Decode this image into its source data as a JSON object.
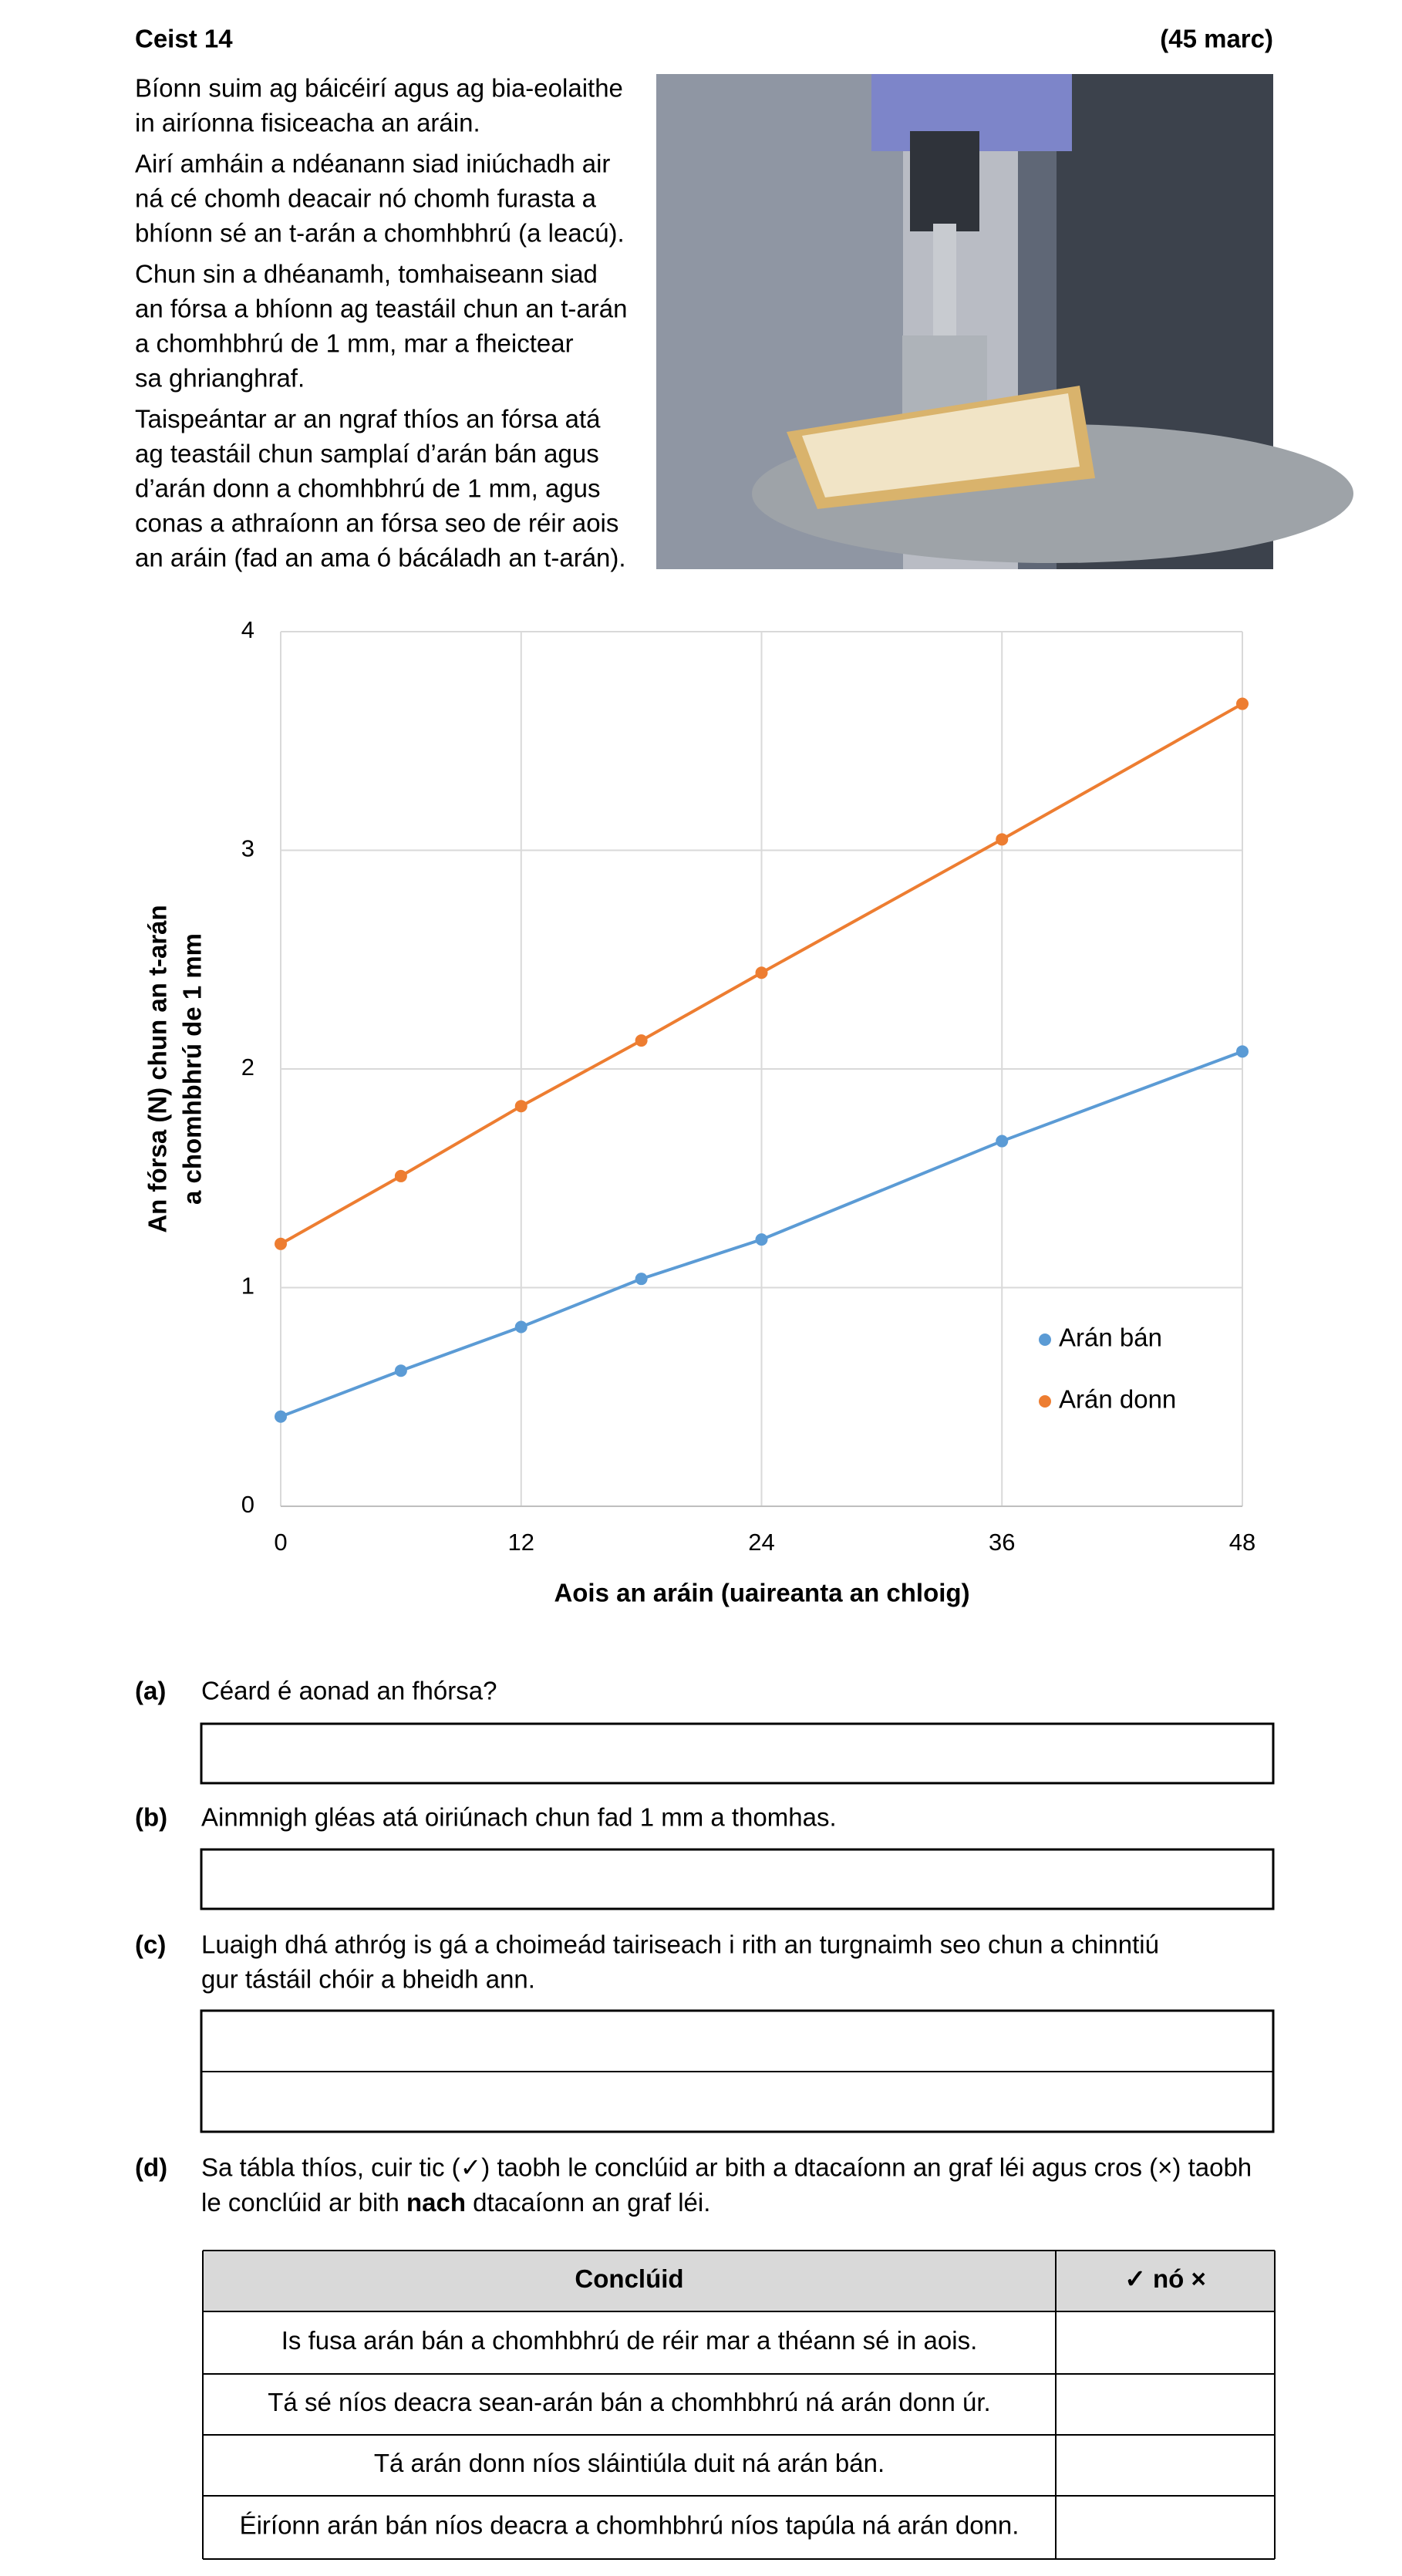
{
  "header": {
    "title": "Ceist 14",
    "marks": "(45 marc)"
  },
  "intro": [
    [
      "Bíonn suim ag báicéirí agus ag bia-eolaithe",
      "in airíonna fisiceacha an aráin."
    ],
    [
      "Airí amháin a ndéanann siad iniúchadh air",
      "ná cé chomh deacair nó chomh furasta a",
      "bhíonn sé an t-arán a chomhbhrú (a leacú)."
    ],
    [
      "Chun sin a dhéanamh, tomhaiseann siad",
      "an fórsa a bhíonn ag teastáil chun an t-arán",
      "a chomhbhrú de 1 mm, mar a fheictear",
      "sa ghrianghraf."
    ],
    [
      "Taispeántar ar an ngraf thíos an fórsa atá",
      "ag teastáil chun samplaí d’arán bán agus",
      "d’arán donn a chomhbhrú de 1 mm, agus",
      "conas a athraíonn an fórsa seo de réir aois",
      "an aráin (fad an ama ó bácáladh an t-arán)."
    ]
  ],
  "chart_data": {
    "type": "line",
    "x_label": "Aois an aráin (uaireanta an chloig)",
    "y_label": [
      "An fórsa (N) chun an t-arán",
      "a chomhbhrú de 1 mm"
    ],
    "x": [
      0,
      6,
      12,
      18,
      24,
      36,
      48
    ],
    "series": [
      {
        "name": "Arán bán",
        "color": "#5b9bd5",
        "values": [
          0.41,
          0.62,
          0.82,
          1.04,
          1.22,
          1.67,
          2.08
        ]
      },
      {
        "name": "Arán donn",
        "color": "#ed7d31",
        "values": [
          1.2,
          1.51,
          1.83,
          2.13,
          2.44,
          3.05,
          3.67
        ]
      }
    ],
    "xlim": [
      0,
      48
    ],
    "xticks": [
      0,
      12,
      24,
      36,
      48
    ],
    "ylim": [
      0,
      4
    ],
    "yticks": [
      0,
      1,
      2,
      3,
      4
    ],
    "grid": true,
    "legend": "lower right"
  },
  "questions": {
    "a": {
      "label": "(a)",
      "text": [
        "Céard é aonad an fhórsa?"
      ]
    },
    "b": {
      "label": "(b)",
      "text": [
        "Ainmnigh gléas atá oiriúnach chun fad 1 mm a thomhas."
      ]
    },
    "c": {
      "label": "(c)",
      "text": [
        "Luaigh dhá athróg is gá a choimeád tairiseach i rith an turgnaimh seo chun a chinntiú",
        "gur tástáil chóir a bheidh ann."
      ]
    },
    "d": {
      "label": "(d)",
      "line1": "Sa tábla thíos, cuir tic (✓) taobh le conclúid ar bith a dtacaíonn an graf léi agus cros (×) taobh",
      "line2": [
        "le conclúid ar bith ",
        "nach",
        " dtacaíonn an graf léi."
      ]
    }
  },
  "table": {
    "header": [
      "Conclúid",
      "✓ nó ×"
    ],
    "rows": [
      "Is fusa arán bán a chomhbhrú de réir mar a théann sé in aois.",
      "Tá sé níos deacra sean-arán bán a chomhbhrú ná arán donn úr.",
      "Tá arán donn níos sláintiúla duit ná arán bán.",
      "Éiríonn arán bán níos deacra a chomhbhrú níos tapúla ná arán donn."
    ]
  }
}
